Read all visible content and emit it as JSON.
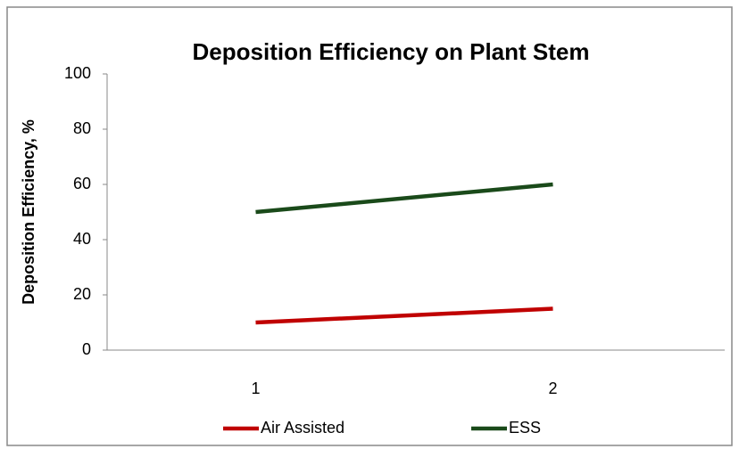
{
  "chart_data": {
    "type": "line",
    "title": "Deposition Efficiency on Plant Stem",
    "y_label": "Deposition Efficiency, %",
    "categories": [
      "1",
      "2"
    ],
    "series": [
      {
        "name": "Air Assisted",
        "color": "#c00000",
        "values": [
          10,
          15
        ]
      },
      {
        "name": "ESS",
        "color": "#1a4a1a",
        "values": [
          50,
          60
        ]
      }
    ],
    "ylim": [
      0,
      100
    ],
    "yticks": [
      0,
      20,
      40,
      60,
      80,
      100
    ],
    "grid": false,
    "legend": "bottom"
  }
}
